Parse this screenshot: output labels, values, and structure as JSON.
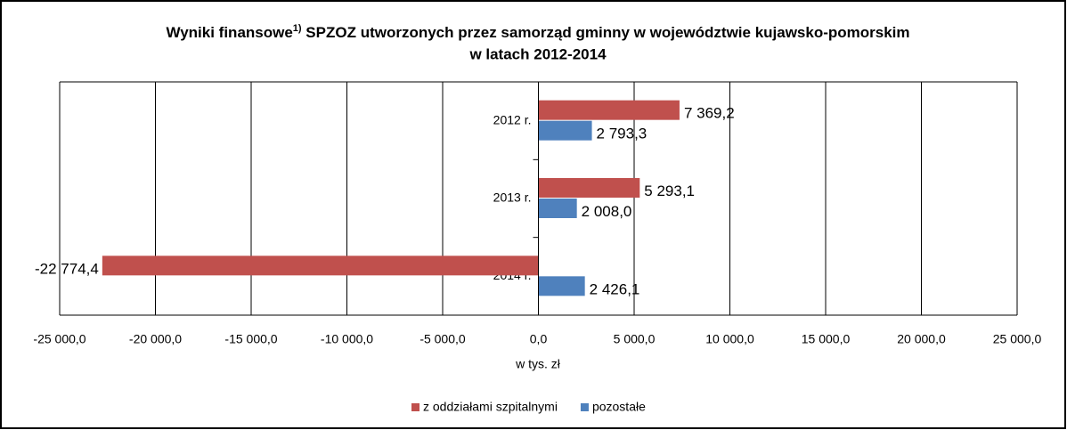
{
  "chart_data": {
    "type": "hbar",
    "title": {
      "main": "Wyniki finansowe",
      "footnote": "1)",
      "rest": " SPZOZ utworzonych przez samorząd gminny w województwie kujawsko-pomorskim",
      "line2": "w latach 2012-2014"
    },
    "x_label": "w tys. zł",
    "categories": [
      "2012 r.",
      "2013 r.",
      "2014 r."
    ],
    "series": [
      {
        "name": "z oddziałami szpitalnymi",
        "color": "#c0504d",
        "values": [
          7369.2,
          5293.1,
          -22774.4
        ],
        "value_labels": [
          "7 369,2",
          "5 293,1",
          "-22 774,4"
        ]
      },
      {
        "name": "pozostałe",
        "color": "#4f81bd",
        "values": [
          2793.3,
          2008.0,
          2426.1
        ],
        "value_labels": [
          "2 793,3",
          "2 008,0",
          "2 426,1"
        ]
      }
    ],
    "xlim": [
      -25000,
      25000
    ],
    "xticks": [
      {
        "value": -25000,
        "label": "-25 000,0"
      },
      {
        "value": -20000,
        "label": "-20 000,0"
      },
      {
        "value": -15000,
        "label": "-15 000,0"
      },
      {
        "value": -10000,
        "label": "-10 000,0"
      },
      {
        "value": -5000,
        "label": "-5 000,0"
      },
      {
        "value": 0,
        "label": "0,0"
      },
      {
        "value": 5000,
        "label": "5 000,0"
      },
      {
        "value": 10000,
        "label": "10 000,0"
      },
      {
        "value": 15000,
        "label": "15 000,0"
      },
      {
        "value": 20000,
        "label": "20 000,0"
      },
      {
        "value": 25000,
        "label": "25 000,0"
      }
    ],
    "grid": true,
    "legend": "bottom"
  }
}
